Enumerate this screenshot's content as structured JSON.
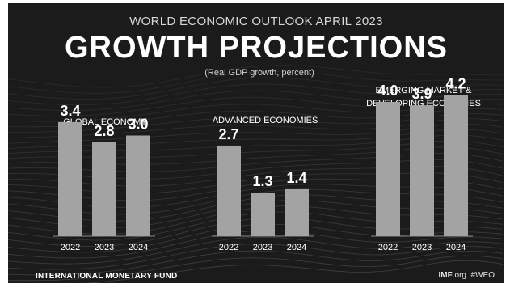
{
  "header": {
    "supertitle": "WORLD ECONOMIC OUTLOOK APRIL 2023",
    "title": "GROWTH PROJECTIONS",
    "subtitle": "(Real GDP growth, percent)"
  },
  "footer": {
    "source": "INTERNATIONAL MONETARY FUND",
    "site_brand": "IMF",
    "site_suffix": ".org",
    "hashtag": "#WEO"
  },
  "colors": {
    "background": "#1b1b1b",
    "bar": "#a3a3a3",
    "text": "#ffffff",
    "wave": "#5a5a5a"
  },
  "chart_data": [
    {
      "type": "bar",
      "title": "GLOBAL ECONOMY",
      "categories": [
        "2022",
        "2023",
        "2024"
      ],
      "values": [
        3.4,
        2.8,
        3.0
      ],
      "value_labels": [
        "3.4",
        "2.8",
        "3.0"
      ],
      "ylim": [
        0,
        4.5
      ],
      "grid": false
    },
    {
      "type": "bar",
      "title": "ADVANCED ECONOMIES",
      "categories": [
        "2022",
        "2023",
        "2024"
      ],
      "values": [
        2.7,
        1.3,
        1.4
      ],
      "value_labels": [
        "2.7",
        "1.3",
        "1.4"
      ],
      "ylim": [
        0,
        4.5
      ],
      "grid": false
    },
    {
      "type": "bar",
      "title_lines": [
        "EMERGING MARKET &",
        "DEVELOPING ECONOMIES"
      ],
      "categories": [
        "2022",
        "2023",
        "2024"
      ],
      "values": [
        4.0,
        3.9,
        4.2
      ],
      "value_labels": [
        "4.0",
        "3.9",
        "4.2"
      ],
      "ylim": [
        0,
        4.5
      ],
      "grid": false
    }
  ]
}
